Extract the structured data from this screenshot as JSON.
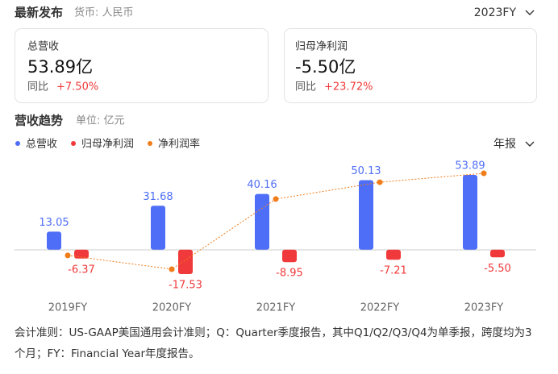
{
  "header": {
    "title": "最新发布",
    "currency": "货币: 人民币",
    "period": "2023FY"
  },
  "cards": [
    {
      "label": "总营收",
      "value": "53.89亿",
      "change_label": "同比",
      "change": "+7.50%"
    },
    {
      "label": "归母净利润",
      "value": "-5.50亿",
      "change_label": "同比",
      "change": "+23.72%"
    }
  ],
  "section": {
    "title": "营收趋势",
    "unit": "单位: 亿元",
    "period": "年报"
  },
  "chart_data": {
    "type": "bar",
    "categories": [
      "2019FY",
      "2020FY",
      "2021FY",
      "2022FY",
      "2023FY"
    ],
    "series": [
      {
        "name": "总营收",
        "color": "#4f6ef7",
        "values": [
          13.05,
          31.68,
          40.16,
          50.13,
          53.89
        ],
        "value_labels": [
          "13.05",
          "31.68",
          "40.16",
          "50.13",
          "53.89"
        ]
      },
      {
        "name": "归母净利润",
        "color": "#f0393a",
        "values": [
          -6.37,
          -17.53,
          -8.95,
          -7.21,
          -5.5
        ],
        "value_labels": [
          "-6.37",
          "-17.53",
          "-8.95",
          "-7.21",
          "-5.50"
        ]
      },
      {
        "name": "净利润率",
        "type": "line",
        "color": "#f07d1a",
        "values": [
          -48.8,
          -55.3,
          -22.3,
          -14.4,
          -10.2
        ]
      }
    ]
  },
  "footnote": "会计准则：US-GAAP美国通用会计准则；Q：Quarter季度报告，其中Q1/Q2/Q3/Q4为单季报，跨度均为3个月；FY：Financial Year年度报告。"
}
